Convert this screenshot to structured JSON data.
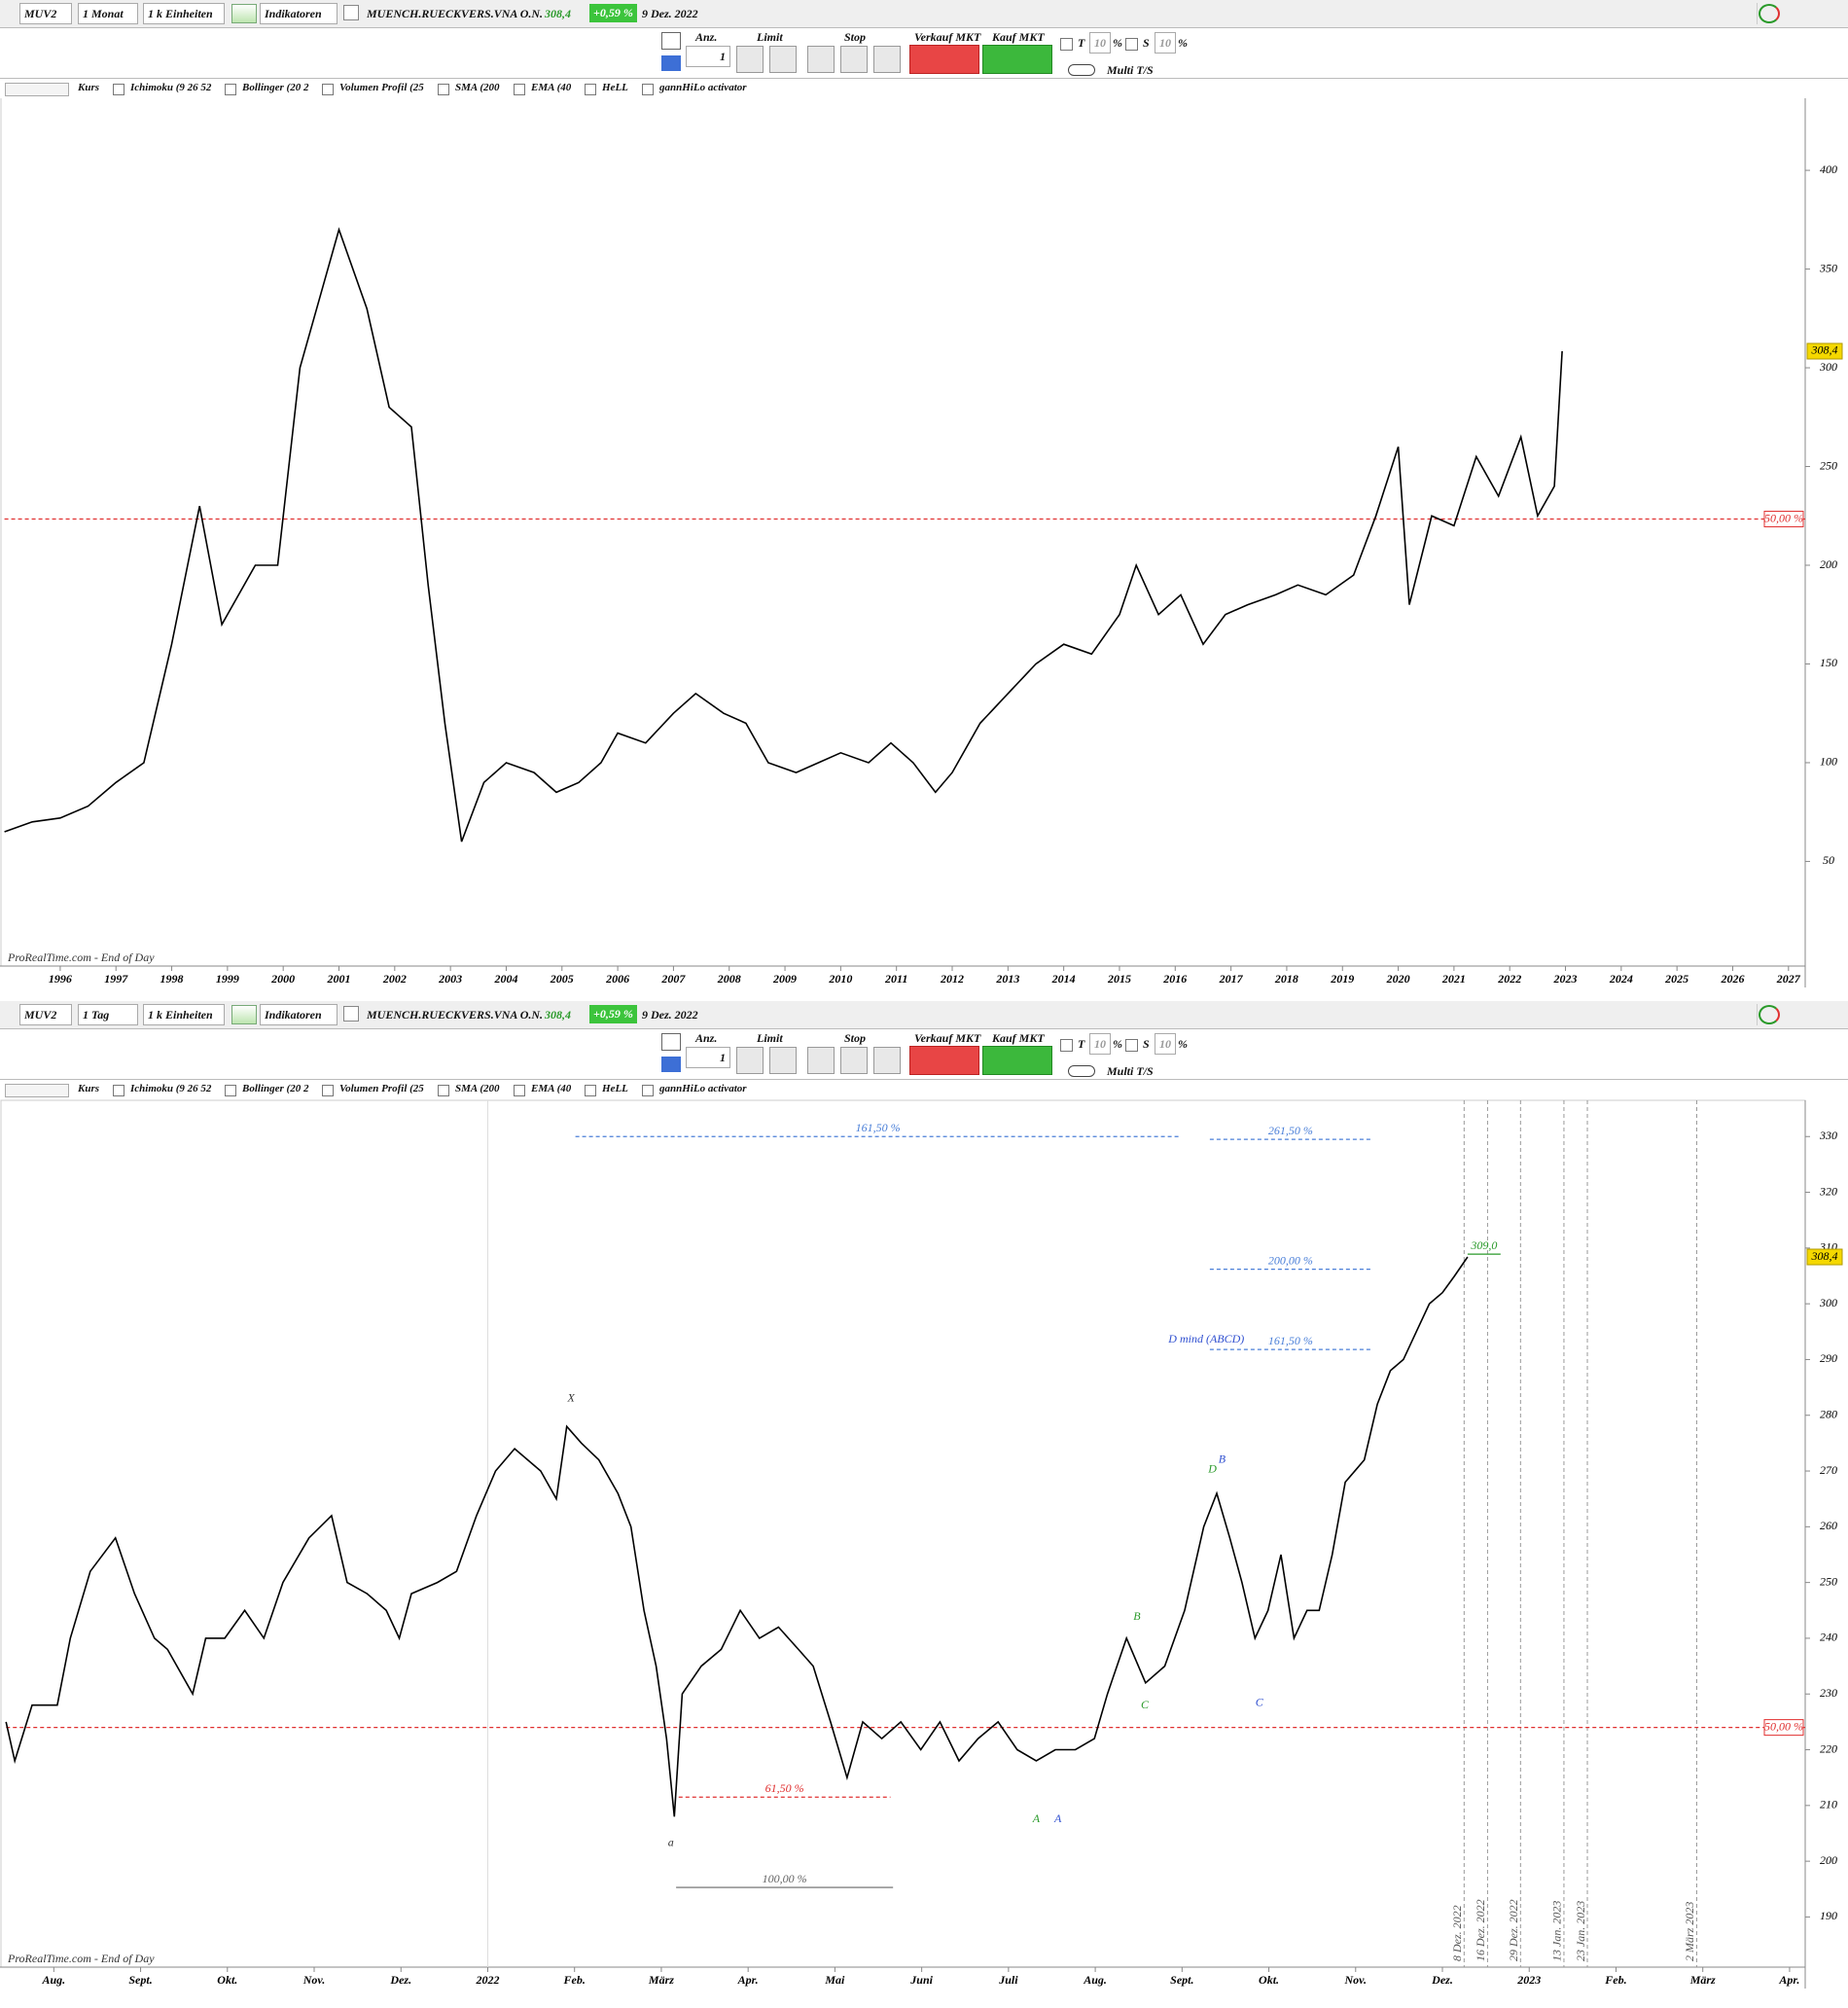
{
  "windows": [
    {
      "symbol": "MUV2",
      "period": "1 Monat",
      "units": "1 k Einheiten",
      "indicators_button": "Indikatoren",
      "name": "MUENCH.RUECKVERS.VNA O.N.",
      "price": "308,4",
      "change": "+0,59 %",
      "date": "9 Dez. 2022",
      "order": {
        "qty_label": "Anz.",
        "qty": "1",
        "limit": "Limit",
        "stop": "Stop",
        "sell": "Verkauf MKT",
        "buy": "Kauf MKT",
        "t": "T",
        "t_val": "10",
        "pct1": "%",
        "s": "S",
        "s_val": "10",
        "pct2": "%",
        "multi": "Multi T/S"
      },
      "indicators": [
        "Kurs",
        "Ichimoku (9 26 52",
        "Bollinger (20 2",
        "Volumen Profil (25",
        "SMA (200",
        "EMA (40",
        "HeLL",
        "gannHiLo activator"
      ]
    },
    {
      "symbol": "MUV2",
      "period": "1 Tag",
      "units": "1 k Einheiten",
      "indicators_button": "Indikatoren",
      "name": "MUENCH.RUECKVERS.VNA O.N.",
      "price": "308,4",
      "change": "+0,59 %",
      "date": "9 Dez. 2022",
      "order": {
        "qty_label": "Anz.",
        "qty": "1",
        "limit": "Limit",
        "stop": "Stop",
        "sell": "Verkauf MKT",
        "buy": "Kauf MKT",
        "t": "T",
        "t_val": "10",
        "pct1": "%",
        "s": "S",
        "s_val": "10",
        "pct2": "%",
        "multi": "Multi T/S"
      },
      "indicators": [
        "Kurs",
        "Ichimoku (9 26 52",
        "Bollinger (20 2",
        "Volumen Profil (25",
        "SMA (200",
        "EMA (40",
        "HeLL",
        "gannHiLo activator"
      ]
    }
  ],
  "chart_data": [
    {
      "type": "line",
      "color": "#000000",
      "source": "ProRealTime.com - End of Day",
      "x": [
        1995.0,
        1995.5,
        1996.0,
        1996.5,
        1997.0,
        1997.5,
        1998.0,
        1998.5,
        1998.9,
        1999.5,
        1999.9,
        2000.3,
        2000.6,
        2001.0,
        2001.5,
        2001.9,
        2002.3,
        2002.6,
        2002.9,
        2003.2,
        2003.6,
        2004.0,
        2004.5,
        2004.9,
        2005.3,
        2005.7,
        2006.0,
        2006.5,
        2007.0,
        2007.4,
        2007.9,
        2008.3,
        2008.7,
        2009.2,
        2009.6,
        2010.0,
        2010.5,
        2010.9,
        2011.3,
        2011.7,
        2012.0,
        2012.5,
        2013.0,
        2013.5,
        2014.0,
        2014.5,
        2015.0,
        2015.3,
        2015.7,
        2016.1,
        2016.5,
        2016.9,
        2017.3,
        2017.8,
        2018.2,
        2018.7,
        2019.2,
        2019.6,
        2020.0,
        2020.2,
        2020.6,
        2021.0,
        2021.4,
        2021.8,
        2022.2,
        2022.5,
        2022.8,
        2022.94
      ],
      "values": [
        65,
        70,
        72,
        78,
        90,
        100,
        160,
        230,
        170,
        200,
        200,
        300,
        330,
        370,
        330,
        280,
        270,
        190,
        120,
        60,
        90,
        100,
        95,
        85,
        90,
        100,
        115,
        110,
        125,
        135,
        125,
        120,
        100,
        95,
        100,
        105,
        100,
        110,
        100,
        85,
        95,
        120,
        135,
        150,
        160,
        155,
        175,
        200,
        175,
        185,
        160,
        175,
        180,
        185,
        190,
        185,
        195,
        225,
        260,
        180,
        225,
        220,
        255,
        235,
        265,
        225,
        240,
        308.4
      ],
      "last_label": "308,4",
      "xlim": [
        1994.92,
        2027.3
      ],
      "ylim": [
        -3,
        437
      ],
      "xticks": [
        1996,
        1997,
        1998,
        1999,
        2000,
        2001,
        2002,
        2003,
        2004,
        2005,
        2006,
        2007,
        2008,
        2009,
        2010,
        2011,
        2012,
        2013,
        2014,
        2015,
        2016,
        2017,
        2018,
        2019,
        2020,
        2021,
        2022,
        2023,
        2024,
        2025,
        2026,
        2027
      ],
      "yticks": [
        50,
        100,
        150,
        200,
        250,
        300,
        350,
        400
      ],
      "levels": [
        {
          "value": 223.4,
          "label": "50,00 %",
          "color": "#e03030",
          "dashed": true
        }
      ]
    },
    {
      "type": "line",
      "color": "#000000",
      "source": "ProRealTime.com - End of Day",
      "x": [
        -0.55,
        -0.45,
        -0.25,
        0.04,
        0.19,
        0.42,
        0.71,
        0.93,
        1.16,
        1.31,
        1.6,
        1.75,
        1.97,
        2.2,
        2.42,
        2.64,
        2.94,
        3.2,
        3.38,
        3.61,
        3.83,
        3.98,
        4.12,
        4.42,
        4.64,
        4.87,
        5.09,
        5.31,
        5.61,
        5.79,
        5.91,
        6.08,
        6.28,
        6.5,
        6.65,
        6.8,
        6.94,
        7.06,
        7.15,
        7.24,
        7.46,
        7.69,
        7.91,
        8.13,
        8.35,
        8.58,
        8.75,
        8.95,
        9.14,
        9.32,
        9.54,
        9.76,
        9.99,
        10.21,
        10.43,
        10.65,
        10.88,
        11.1,
        11.32,
        11.54,
        11.77,
        11.99,
        12.14,
        12.36,
        12.58,
        12.8,
        13.03,
        13.25,
        13.4,
        13.55,
        13.69,
        13.84,
        13.99,
        14.14,
        14.29,
        14.44,
        14.58,
        14.73,
        14.88,
        15.1,
        15.25,
        15.4,
        15.55,
        15.7,
        15.85,
        16.0,
        16.14,
        16.29
      ],
      "values": [
        225,
        218,
        228,
        228,
        240,
        252,
        258,
        248,
        240,
        238,
        230,
        240,
        240,
        245,
        240,
        250,
        258,
        262,
        250,
        248,
        245,
        240,
        248,
        250,
        252,
        262,
        270,
        274,
        270,
        265,
        278,
        275,
        272,
        266,
        260,
        245,
        235,
        222,
        208,
        230,
        235,
        238,
        245,
        240,
        242,
        238,
        235,
        225,
        215,
        225,
        222,
        225,
        220,
        225,
        218,
        222,
        225,
        220,
        218,
        220,
        220,
        222,
        230,
        240,
        232,
        235,
        245,
        260,
        266,
        258,
        250,
        240,
        245,
        255,
        240,
        245,
        245,
        255,
        268,
        272,
        282,
        288,
        290,
        295,
        300,
        302,
        305,
        308.4
      ],
      "last_label": "308,4",
      "xlim": [
        -0.62,
        20.18
      ],
      "ylim": [
        181,
        336.5
      ],
      "xticks": [
        {
          "value": 0,
          "label": "Aug."
        },
        {
          "value": 1,
          "label": "Sept."
        },
        {
          "value": 2,
          "label": "Okt."
        },
        {
          "value": 3,
          "label": "Nov."
        },
        {
          "value": 4,
          "label": "Dez."
        },
        {
          "value": 5,
          "label": "2022"
        },
        {
          "value": 6,
          "label": "Feb."
        },
        {
          "value": 7,
          "label": "März"
        },
        {
          "value": 8,
          "label": "Apr."
        },
        {
          "value": 9,
          "label": "Mai"
        },
        {
          "value": 10,
          "label": "Juni"
        },
        {
          "value": 11,
          "label": "Juli"
        },
        {
          "value": 12,
          "label": "Aug."
        },
        {
          "value": 13,
          "label": "Sept."
        },
        {
          "value": 14,
          "label": "Okt."
        },
        {
          "value": 15,
          "label": "Nov."
        },
        {
          "value": 16,
          "label": "Dez."
        },
        {
          "value": 17,
          "label": "2023"
        },
        {
          "value": 18,
          "label": "Feb."
        },
        {
          "value": 19,
          "label": "März"
        },
        {
          "value": 20,
          "label": "Apr."
        }
      ],
      "yticks": [
        190,
        200,
        210,
        220,
        230,
        240,
        250,
        260,
        270,
        280,
        290,
        300,
        310,
        320,
        330
      ],
      "levels": [
        {
          "value": 224.0,
          "label": "50,00 %",
          "color": "#e03030",
          "dashed": true
        },
        {
          "value": 330.0,
          "label": "161,50 %",
          "color": "#4a7fd8",
          "dashed": true,
          "x": [
            6.01,
            12.98
          ]
        },
        {
          "value": 329.5,
          "label": "261,50 %",
          "color": "#4a7fd8",
          "dashed": true,
          "x": [
            13.32,
            15.18
          ]
        },
        {
          "value": 306.2,
          "label": "200,00 %",
          "color": "#4a7fd8",
          "dashed": true,
          "x": [
            13.32,
            15.18
          ]
        },
        {
          "value": 291.8,
          "label": "161,50 %",
          "color": "#4a7fd8",
          "dashed": true,
          "x": [
            13.32,
            15.18
          ]
        },
        {
          "value": 211.5,
          "label": "61,50 %",
          "color": "#e03030",
          "dashed": true,
          "x": [
            7.2,
            9.64
          ]
        },
        {
          "value": 195.3,
          "label": "100,00 %",
          "color": "#666666",
          "dashed": false,
          "x": [
            7.17,
            9.67
          ]
        },
        {
          "value": 308.9,
          "label": "309,0",
          "color": "#2a9a2a",
          "dashed": false,
          "x": [
            16.29,
            16.67
          ]
        }
      ],
      "vlines": [
        {
          "x": 16.25,
          "label": "8 Dez. 2022"
        },
        {
          "x": 16.52,
          "label": "16 Dez. 2022"
        },
        {
          "x": 16.9,
          "label": "29 Dez. 2022"
        },
        {
          "x": 17.4,
          "label": "13 Jan. 2023"
        },
        {
          "x": 17.67,
          "label": "23 Jan. 2023"
        },
        {
          "x": 18.93,
          "label": "2 März 2023"
        }
      ],
      "annotations": [
        {
          "text": "X",
          "x": 5.96,
          "y": 283,
          "color": "#333333"
        },
        {
          "text": "a",
          "x": 7.11,
          "y": 203.2,
          "color": "#333333"
        },
        {
          "text": "A",
          "x": 11.32,
          "y": 207.5,
          "color": "#2a9a2a"
        },
        {
          "text": "A",
          "x": 11.57,
          "y": 207.5,
          "color": "#3050d0"
        },
        {
          "text": "B",
          "x": 12.48,
          "y": 243.8,
          "color": "#2a9a2a"
        },
        {
          "text": "C",
          "x": 12.57,
          "y": 227.9,
          "color": "#2a9a2a"
        },
        {
          "text": "D",
          "x": 13.35,
          "y": 270.2,
          "color": "#2a9a2a"
        },
        {
          "text": "B",
          "x": 13.46,
          "y": 272,
          "color": "#3050d0"
        },
        {
          "text": "C",
          "x": 13.89,
          "y": 228.3,
          "color": "#3050d0"
        },
        {
          "text": "D mind (ABCD)",
          "x": 13.28,
          "y": 293.5,
          "color": "#3050d0"
        }
      ]
    }
  ]
}
